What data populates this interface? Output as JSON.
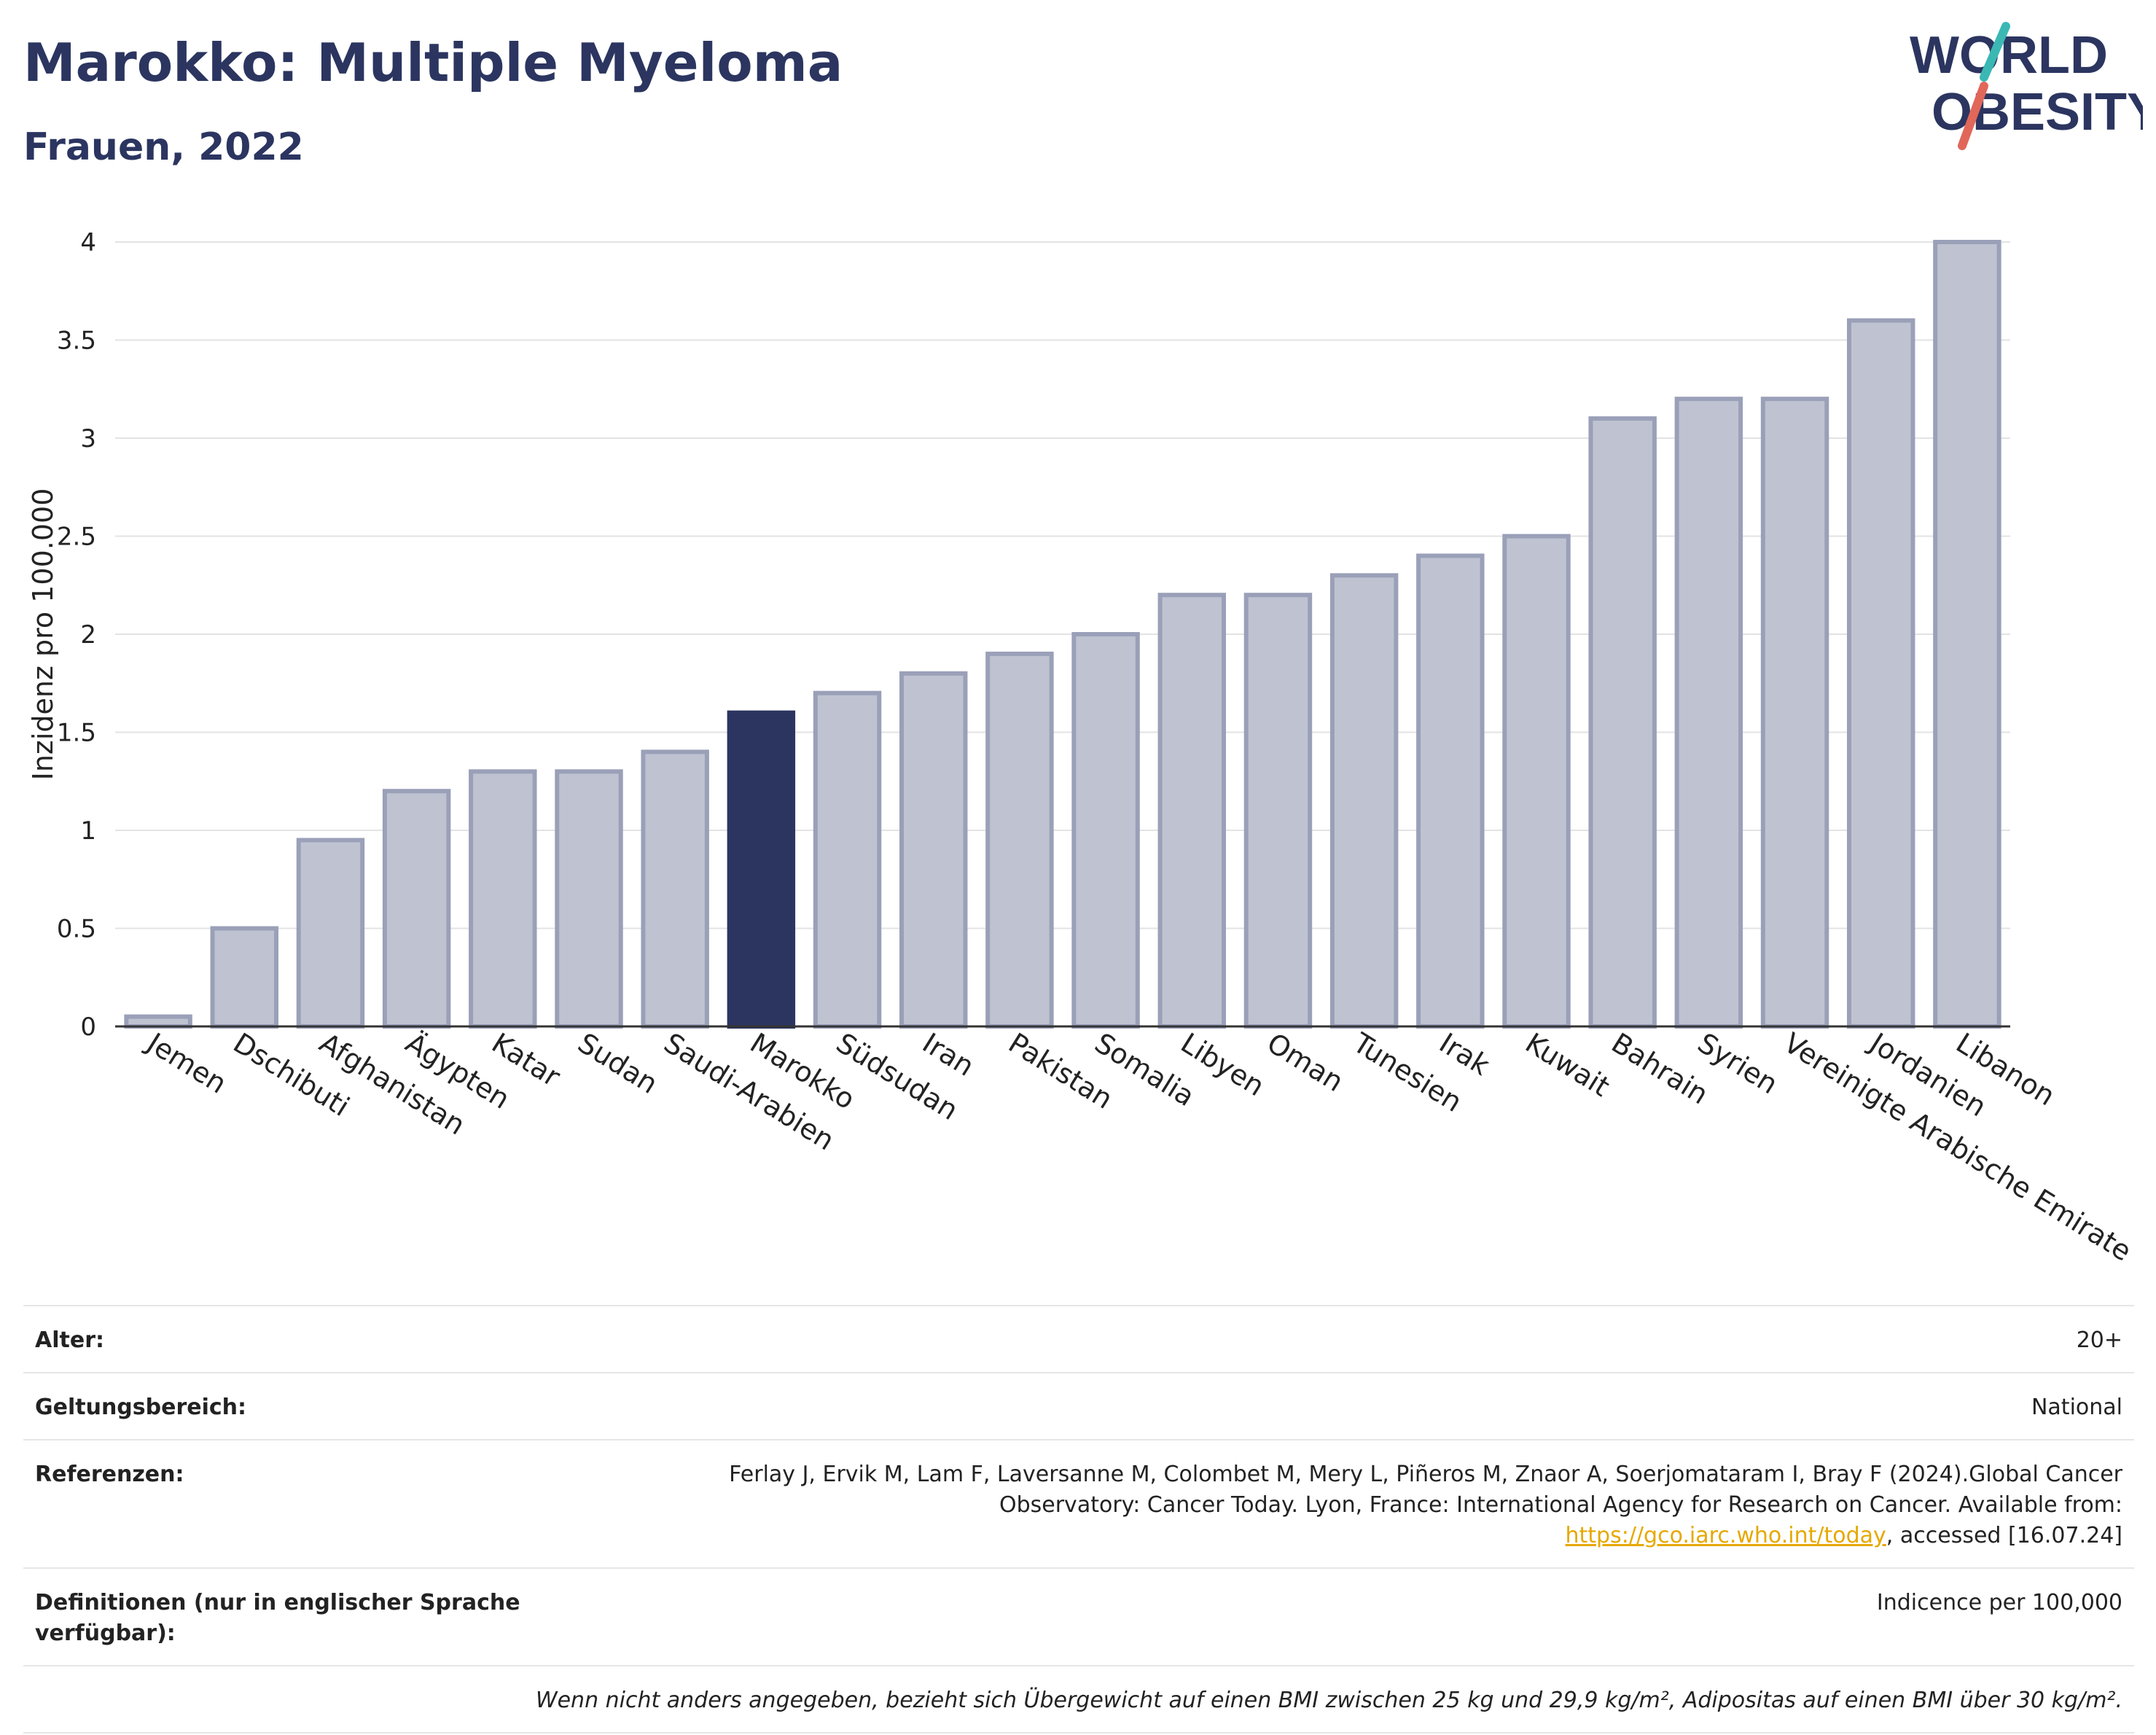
{
  "header": {
    "title": "Marokko: Multiple Myeloma",
    "subtitle": "Frauen, 2022"
  },
  "logo": {
    "line1": "WORLD",
    "line2": "OBESITY"
  },
  "colors": {
    "highlight": "#2b3560",
    "bar": "#bfc3d1",
    "bar_border": "#9aa0b8",
    "title": "#2b3560",
    "link": "#e6a800"
  },
  "chart_data": {
    "type": "bar",
    "ylabel": "Inzidenz pro 100.000",
    "xlabel": "",
    "ylim": [
      0,
      4
    ],
    "yticks": [
      "0",
      "0.5",
      "1",
      "1.5",
      "2",
      "2.5",
      "3",
      "3.5",
      "4"
    ],
    "grid": true,
    "highlight": "Marokko",
    "categories": [
      "Jemen",
      "Dschibuti",
      "Afghanistan",
      "Ägypten",
      "Katar",
      "Sudan",
      "Saudi-Arabien",
      "Marokko",
      "Südsudan",
      "Iran",
      "Pakistan",
      "Somalia",
      "Libyen",
      "Oman",
      "Tunesien",
      "Irak",
      "Kuwait",
      "Bahrain",
      "Syrien",
      "Vereinigte Arabische Emirate",
      "Jordanien",
      "Libanon"
    ],
    "values": [
      0.05,
      0.5,
      0.95,
      1.2,
      1.3,
      1.3,
      1.4,
      1.6,
      1.7,
      1.8,
      1.9,
      2.0,
      2.2,
      2.2,
      2.3,
      2.4,
      2.5,
      3.1,
      3.2,
      3.2,
      3.6,
      4.0
    ]
  },
  "meta": {
    "age_label": "Alter:",
    "age_value": "20+",
    "scope_label": "Geltungsbereich:",
    "scope_value": "National",
    "ref_label": "Referenzen:",
    "ref_text_1": "Ferlay J, Ervik M, Lam F, Laversanne M, Colombet M, Mery L, Piñeros M, Znaor A, Soerjomataram I, Bray F (2024).Global Cancer Observatory: Cancer Today. Lyon, France: International Agency for Research on Cancer. Available from: ",
    "ref_link": "https://gco.iarc.who.int/today",
    "ref_text_2": ", accessed [16.07.24]",
    "def_label": "Definitionen (nur in englischer Sprache verfügbar):",
    "def_value": "Indicence per 100,000",
    "note": "Wenn nicht anders angegeben, bezieht sich Übergewicht auf einen BMI zwischen 25 kg und 29,9 kg/m², Adipositas auf einen BMI über 30 kg/m²."
  }
}
